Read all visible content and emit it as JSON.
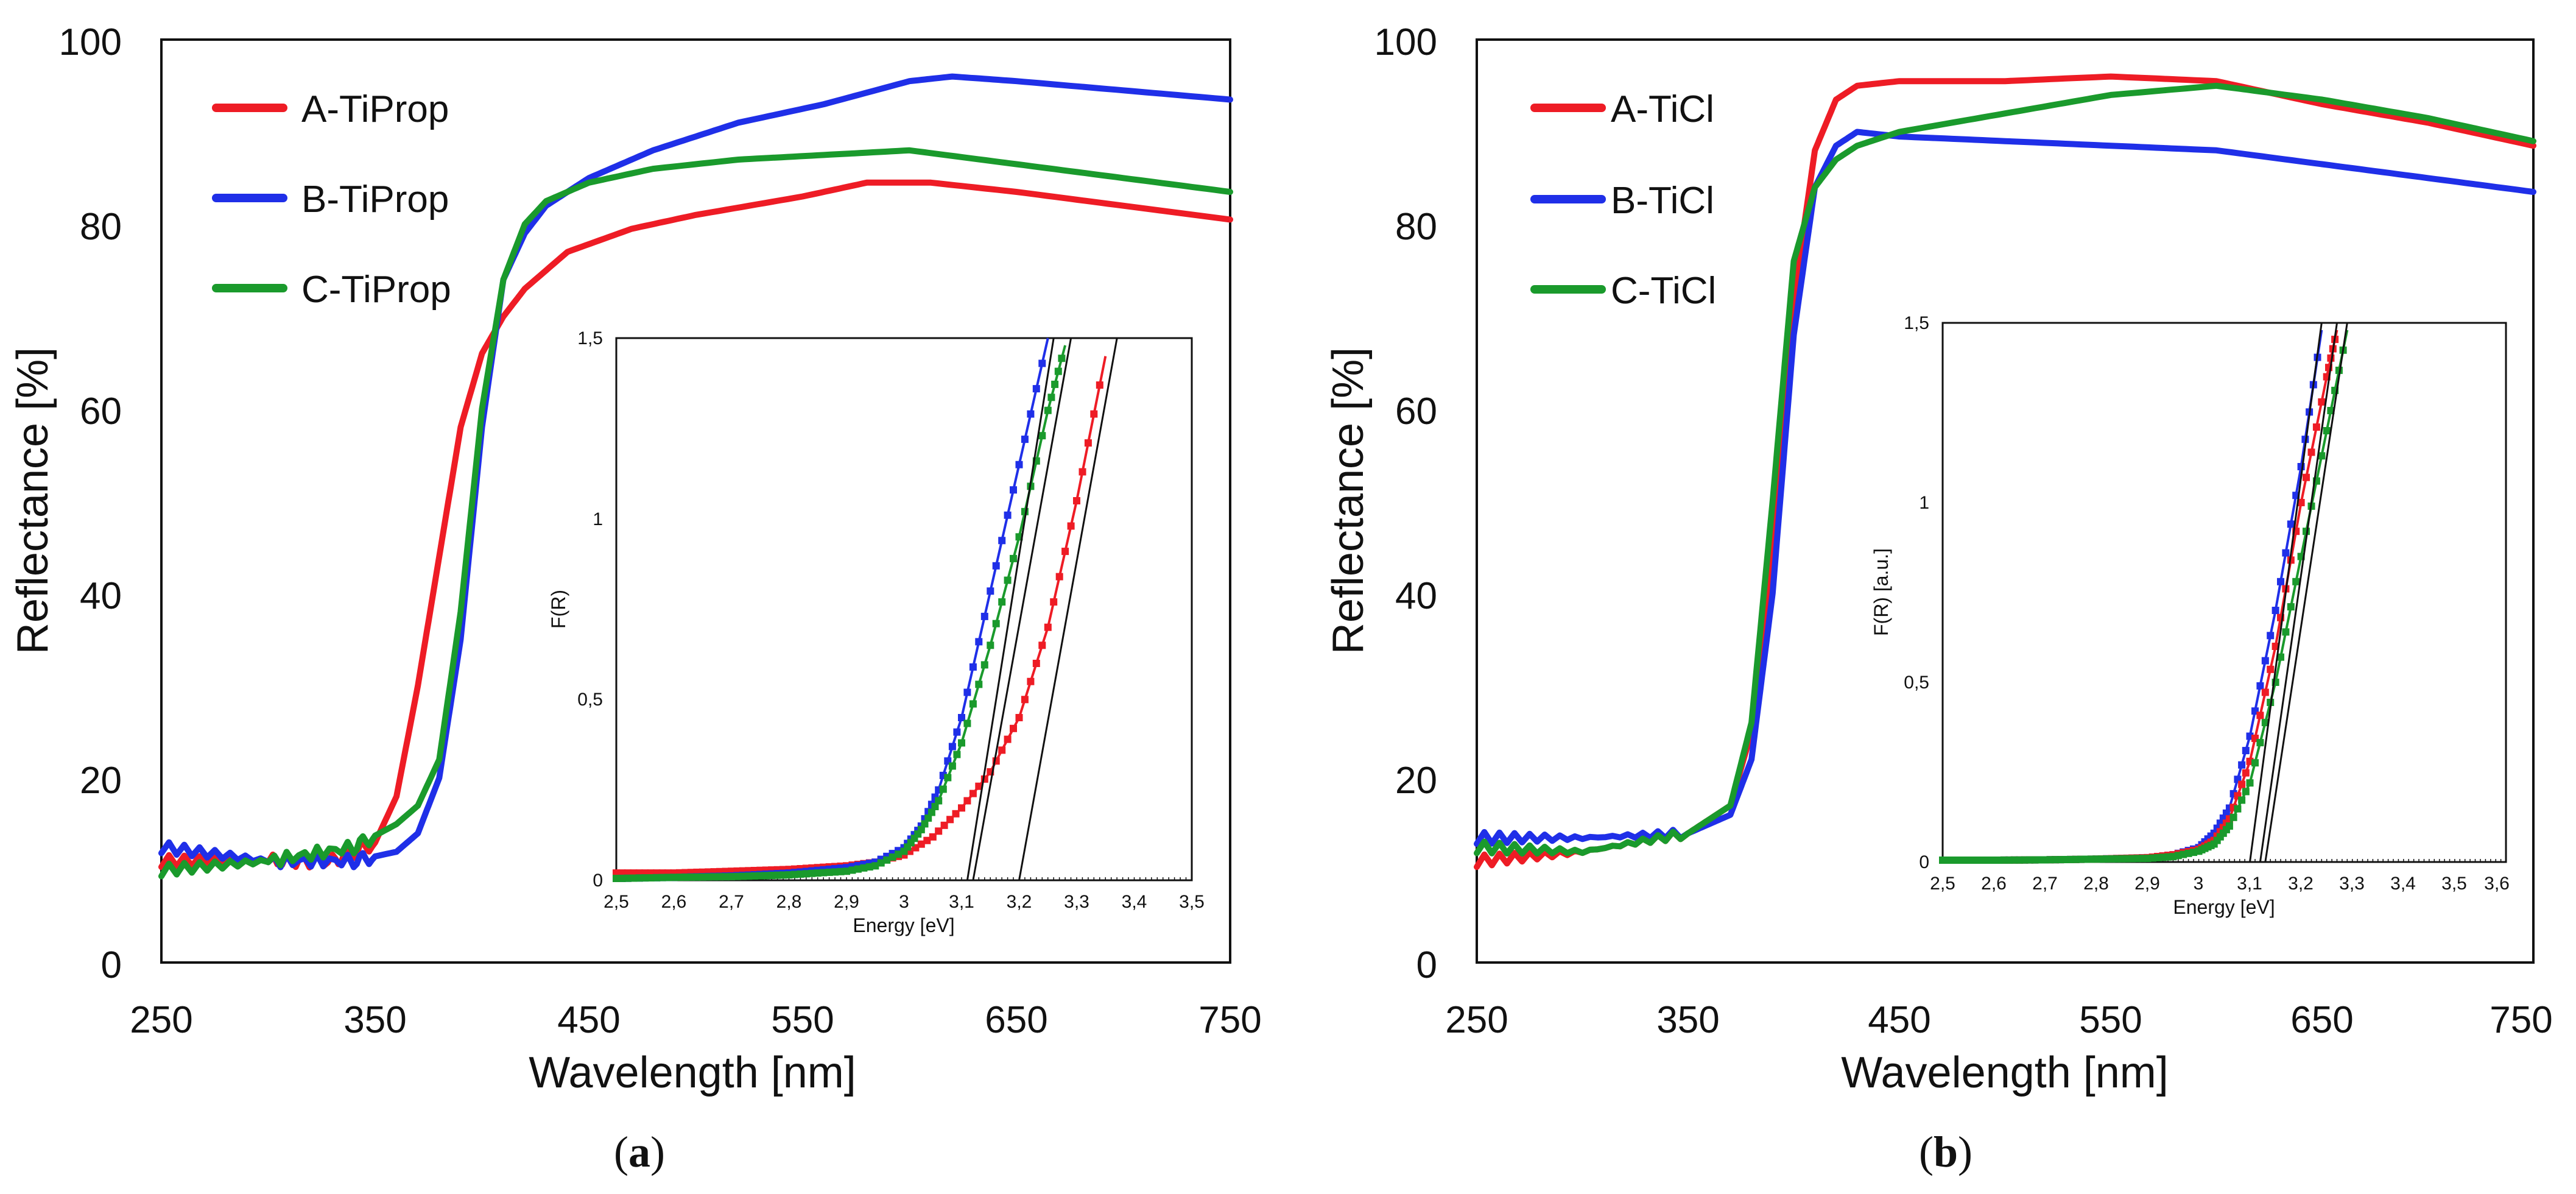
{
  "colors": {
    "A": "#ee1c25",
    "B": "#1f2fe8",
    "C": "#1a9a2c",
    "fit": "#111111",
    "frame": "#111111"
  },
  "chart_data": [
    {
      "panel": "a",
      "caption": "(a)",
      "caption_letter": "a",
      "type": "line",
      "xlabel": "Wavelength [nm]",
      "ylabel": "Reflectance [%]",
      "xlim": [
        250,
        750
      ],
      "ylim": [
        0,
        100
      ],
      "xticks": [
        "250",
        "350",
        "450",
        "550",
        "650",
        "750"
      ],
      "yticks": [
        "0",
        "20",
        "40",
        "60",
        "80",
        "100"
      ],
      "legend_position": "top-left",
      "series": [
        {
          "key": "A",
          "name": "A-TiProp",
          "x": [
            250,
            300,
            330,
            350,
            360,
            370,
            380,
            390,
            400,
            410,
            420,
            440,
            470,
            500,
            550,
            580,
            610,
            650,
            700,
            750
          ],
          "y": [
            11,
            11,
            11,
            13,
            18,
            30,
            44,
            58,
            66,
            70,
            73,
            77,
            79.5,
            81,
            83,
            84.5,
            84.5,
            83.5,
            82,
            80.5
          ]
        },
        {
          "key": "B",
          "name": "B-TiProp",
          "x": [
            250,
            300,
            340,
            360,
            370,
            380,
            390,
            400,
            410,
            420,
            430,
            450,
            480,
            520,
            560,
            600,
            620,
            650,
            700,
            750
          ],
          "y": [
            12.5,
            11,
            11,
            12,
            14,
            20,
            35,
            58,
            74,
            79,
            82,
            85,
            88,
            91,
            93,
            95.5,
            96,
            95.5,
            94.5,
            93.5
          ]
        },
        {
          "key": "C",
          "name": "C-TiProp",
          "x": [
            250,
            300,
            340,
            360,
            370,
            380,
            390,
            400,
            410,
            420,
            430,
            450,
            480,
            520,
            560,
            600,
            650,
            700,
            750
          ],
          "y": [
            10,
            11,
            12.5,
            15,
            17,
            22,
            38,
            60,
            74,
            80,
            82.5,
            84.5,
            86,
            87,
            87.5,
            88,
            86.5,
            85,
            83.5
          ]
        }
      ],
      "inset": {
        "xlabel": "Energy [eV]",
        "ylabel": "F(R)",
        "xlim": [
          2.5,
          3.5
        ],
        "ylim": [
          0,
          1.5
        ],
        "xticks": [
          "2,5",
          "2,6",
          "2,7",
          "2,8",
          "2,9",
          "3",
          "3,1",
          "3,2",
          "3,3",
          "3,4",
          "3,5"
        ],
        "yticks": [
          "0",
          "0,5",
          "1",
          "1,5"
        ],
        "series": [
          {
            "key": "A",
            "x": [
              2.5,
              2.6,
              2.7,
              2.8,
              2.9,
              2.95,
              3.0,
              3.05,
              3.1,
              3.15,
              3.2,
              3.25,
              3.3,
              3.35
            ],
            "y": [
              0.02,
              0.02,
              0.025,
              0.03,
              0.04,
              0.05,
              0.07,
              0.12,
              0.2,
              0.3,
              0.45,
              0.7,
              1.05,
              1.45
            ]
          },
          {
            "key": "B",
            "x": [
              2.5,
              2.6,
              2.7,
              2.8,
              2.9,
              2.95,
              3.0,
              3.03,
              3.06,
              3.1,
              3.15,
              3.2,
              3.25
            ],
            "y": [
              0.005,
              0.008,
              0.012,
              0.02,
              0.035,
              0.05,
              0.09,
              0.15,
              0.25,
              0.45,
              0.8,
              1.15,
              1.5
            ]
          },
          {
            "key": "C",
            "x": [
              2.5,
              2.6,
              2.7,
              2.8,
              2.9,
              2.95,
              3.0,
              3.03,
              3.06,
              3.1,
              3.15,
              3.2,
              3.25,
              3.28
            ],
            "y": [
              0.005,
              0.008,
              0.01,
              0.015,
              0.025,
              0.04,
              0.08,
              0.14,
              0.22,
              0.38,
              0.65,
              0.95,
              1.3,
              1.48
            ]
          }
        ],
        "fit_lines": [
          {
            "key": "B",
            "x": [
              3.11,
              3.26
            ],
            "y": [
              0,
              1.5
            ]
          },
          {
            "key": "C",
            "x": [
              3.12,
              3.29
            ],
            "y": [
              0,
              1.5
            ]
          },
          {
            "key": "A",
            "x": [
              3.2,
              3.37
            ],
            "y": [
              0,
              1.5
            ]
          }
        ]
      }
    },
    {
      "panel": "b",
      "caption": "(b)",
      "caption_letter": "b",
      "type": "line",
      "xlabel": "Wavelength [nm]",
      "ylabel": "Reflectance [%]",
      "xlim": [
        250,
        750
      ],
      "ylim": [
        0,
        100
      ],
      "xticks": [
        "250",
        "350",
        "450",
        "550",
        "650",
        "750"
      ],
      "yticks": [
        "0",
        "20",
        "40",
        "60",
        "80",
        "100"
      ],
      "legend_position": "top-left",
      "series": [
        {
          "key": "A",
          "name": "A-TiCl",
          "x": [
            250,
            300,
            350,
            370,
            380,
            390,
            400,
            410,
            420,
            430,
            450,
            500,
            550,
            600,
            650,
            700,
            750
          ],
          "y": [
            11,
            12,
            14,
            17,
            25,
            45,
            72,
            88,
            93.5,
            95,
            95.5,
            95.5,
            96,
            95.5,
            93,
            91,
            88.5
          ]
        },
        {
          "key": "B",
          "name": "B-TiCl",
          "x": [
            250,
            300,
            350,
            370,
            380,
            390,
            400,
            410,
            420,
            430,
            450,
            500,
            550,
            600,
            650,
            700,
            750
          ],
          "y": [
            13.5,
            13.5,
            14,
            16,
            22,
            40,
            68,
            84,
            88.5,
            90,
            89.5,
            89,
            88.5,
            88,
            86.5,
            85,
            83.5
          ]
        },
        {
          "key": "C",
          "name": "C-TiCl",
          "x": [
            250,
            300,
            350,
            370,
            380,
            390,
            400,
            410,
            420,
            430,
            450,
            500,
            550,
            600,
            650,
            700,
            750
          ],
          "y": [
            12.5,
            12,
            14,
            17,
            26,
            50,
            76,
            84,
            87,
            88.5,
            90,
            92,
            94,
            95,
            93.5,
            91.5,
            89
          ]
        }
      ],
      "inset": {
        "xlabel": "Energy [eV]",
        "ylabel": "F(R) [a.u.]",
        "xlim": [
          2.5,
          3.6
        ],
        "ylim": [
          0,
          1.5
        ],
        "xticks": [
          "2,5",
          "2,6",
          "2,7",
          "2,8",
          "2,9",
          "3",
          "3,1",
          "3,2",
          "3,3",
          "3,4",
          "3,5",
          "3,6"
        ],
        "yticks": [
          "0",
          "0,5",
          "1",
          "1,5"
        ],
        "series": [
          {
            "key": "B",
            "x": [
              2.5,
              2.6,
              2.7,
              2.8,
              2.9,
              2.95,
              3.0,
              3.03,
              3.06,
              3.1,
              3.15,
              3.2,
              3.24
            ],
            "y": [
              0.005,
              0.005,
              0.006,
              0.008,
              0.012,
              0.02,
              0.04,
              0.08,
              0.15,
              0.35,
              0.7,
              1.1,
              1.48
            ]
          },
          {
            "key": "A",
            "x": [
              2.5,
              2.6,
              2.7,
              2.8,
              2.9,
              2.95,
              3.0,
              3.03,
              3.06,
              3.1,
              3.15,
              3.2,
              3.25,
              3.27
            ],
            "y": [
              0.005,
              0.005,
              0.006,
              0.008,
              0.012,
              0.02,
              0.035,
              0.06,
              0.12,
              0.28,
              0.6,
              1.0,
              1.35,
              1.48
            ]
          },
          {
            "key": "C",
            "x": [
              2.5,
              2.6,
              2.7,
              2.8,
              2.9,
              2.95,
              3.0,
              3.03,
              3.06,
              3.1,
              3.15,
              3.2,
              3.25,
              3.29
            ],
            "y": [
              0.005,
              0.005,
              0.006,
              0.008,
              0.01,
              0.015,
              0.03,
              0.05,
              0.1,
              0.22,
              0.5,
              0.85,
              1.2,
              1.48
            ]
          }
        ],
        "fit_lines": [
          {
            "key": "B",
            "x": [
              3.1,
              3.24
            ],
            "y": [
              0,
              1.5
            ]
          },
          {
            "key": "A",
            "x": [
              3.12,
              3.27
            ],
            "y": [
              0,
              1.5
            ]
          },
          {
            "key": "C",
            "x": [
              3.13,
              3.29
            ],
            "y": [
              0,
              1.5
            ]
          }
        ]
      }
    }
  ]
}
